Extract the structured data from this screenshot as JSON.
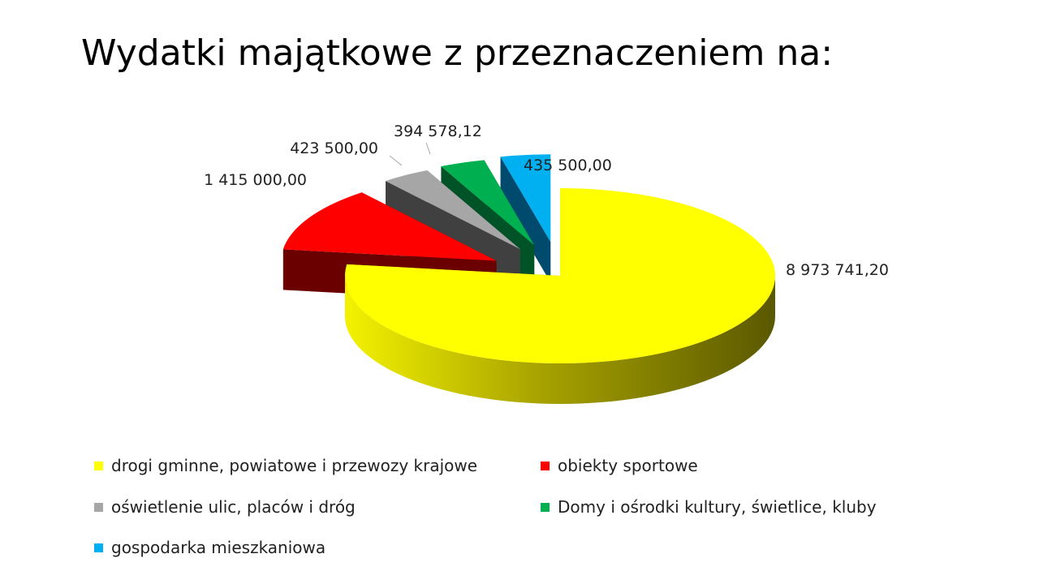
{
  "slide": {
    "title": "Wydatki majątkowe z przeznaczeniem na:"
  },
  "chart_data": {
    "type": "pie",
    "style": "3d-exploded",
    "categories": [
      "drogi gminne, powiatowe i przewozy krajowe",
      "obiekty sportowe",
      "oświetlenie ulic, placów i dróg",
      "Domy i ośrodki kultury, świetlice, kluby",
      "gospodarka mieszkaniowa"
    ],
    "values": [
      8973741.2,
      1415000.0,
      423500.0,
      394578.12,
      435500.0
    ],
    "data_labels": [
      "8 973 741,20",
      "1 415 000,00",
      "423 500,00",
      "394 578,12",
      "435 500,00"
    ],
    "colors": [
      "#ffff00",
      "#ff0000",
      "#a6a6a6",
      "#00b050",
      "#00b0f0"
    ],
    "legend_position": "bottom"
  }
}
